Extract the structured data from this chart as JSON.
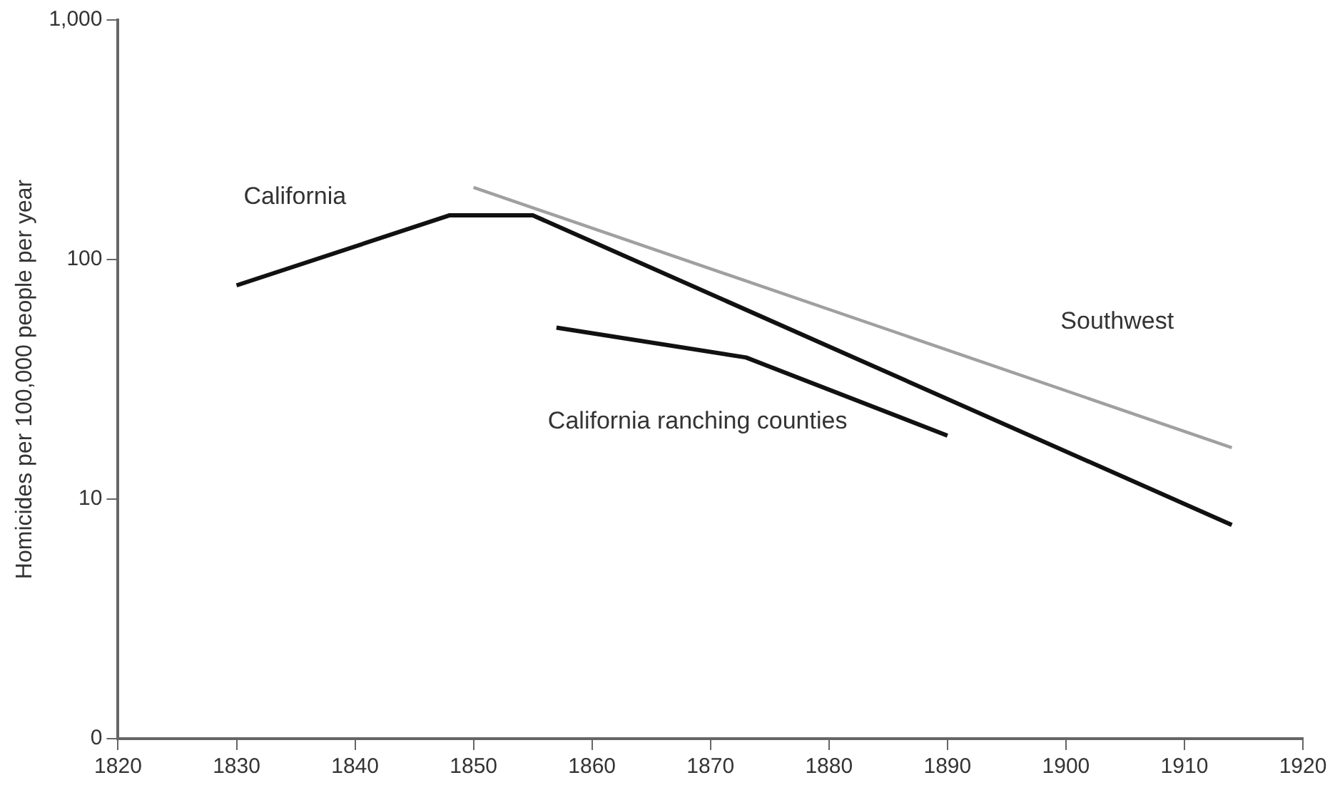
{
  "chart_data": {
    "type": "line",
    "ylabel": "Homicides per 100,000 people per year",
    "log": "y",
    "grid": false,
    "legend": false,
    "marker": "none",
    "line_style": "solid",
    "xlim": [
      1820,
      1920
    ],
    "xticks": [
      1820,
      1830,
      1840,
      1850,
      1860,
      1870,
      1880,
      1890,
      1900,
      1910,
      1920
    ],
    "ylim": [
      0,
      1000
    ],
    "yticks": [
      0,
      10,
      100,
      {
        "value": 1000,
        "label": "1,000"
      }
    ],
    "series": [
      {
        "name": "California",
        "color": "#111111",
        "x": [
          1830,
          1848,
          1855,
          1914
        ],
        "values": [
          78,
          153,
          153,
          7.8
        ]
      },
      {
        "name": "Southwest",
        "color": "#a0a0a0",
        "x": [
          1850,
          1914
        ],
        "values": [
          200,
          16.4
        ]
      },
      {
        "name": "California ranching counties",
        "color": "#111111",
        "x": [
          1857,
          1873,
          1890
        ],
        "values": [
          52,
          39,
          18.4
        ]
      }
    ]
  }
}
